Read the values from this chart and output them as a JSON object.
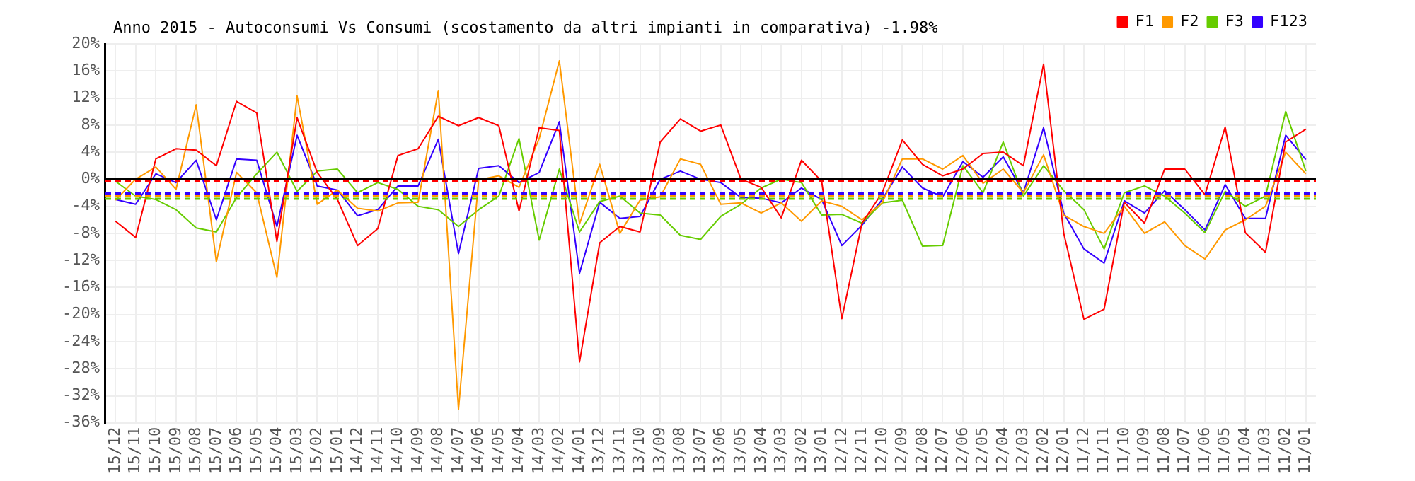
{
  "chart_data": {
    "type": "line",
    "title": "Anno 2015 - Autoconsumi Vs Consumi (scostamento da altri impianti in comparativa) -1.98%",
    "categories": [
      "15/12",
      "15/11",
      "15/10",
      "15/09",
      "15/08",
      "15/07",
      "15/06",
      "15/05",
      "15/04",
      "15/03",
      "15/02",
      "15/01",
      "14/12",
      "14/11",
      "14/10",
      "14/09",
      "14/08",
      "14/07",
      "14/06",
      "14/05",
      "14/04",
      "14/03",
      "14/02",
      "14/01",
      "13/12",
      "13/11",
      "13/10",
      "13/09",
      "13/08",
      "13/07",
      "13/06",
      "13/05",
      "13/04",
      "13/03",
      "13/02",
      "13/01",
      "12/12",
      "12/11",
      "12/10",
      "12/09",
      "12/08",
      "12/07",
      "12/06",
      "12/05",
      "12/04",
      "12/03",
      "12/02",
      "12/01",
      "11/12",
      "11/11",
      "11/10",
      "11/09",
      "11/08",
      "11/07",
      "11/06",
      "11/05",
      "11/04",
      "11/03",
      "11/02",
      "11/01"
    ],
    "series": [
      {
        "name": "F1",
        "color": "#ff0000",
        "values": [
          -6.2,
          -8.6,
          3.0,
          4.5,
          4.3,
          2.0,
          11.5,
          9.8,
          -9.2,
          9.1,
          1.0,
          -3.0,
          -9.8,
          -7.3,
          3.5,
          4.5,
          9.3,
          7.9,
          9.1,
          7.9,
          -4.7,
          7.6,
          7.2,
          -27,
          -9.4,
          -7,
          -7.8,
          5.5,
          8.9,
          7.1,
          8,
          0,
          -1.2,
          -5.7,
          2.8,
          -0.3,
          -20.6,
          -6.5,
          -2,
          5.8,
          2.2,
          0.5,
          1.5,
          3.8,
          4,
          2,
          17,
          -8,
          -20.7,
          -19.2,
          -3.4,
          -6.5,
          1.5,
          1.5,
          -2.3,
          7.7,
          -7.9,
          -10.8,
          5.5,
          7.4
        ]
      },
      {
        "name": "F2",
        "color": "#ff9900",
        "values": [
          -3.1,
          0,
          1.8,
          -1.5,
          11,
          -12.2,
          1,
          -2,
          -14.5,
          12.3,
          -3.7,
          -1.6,
          -4.3,
          -4.7,
          -3.5,
          -3.4,
          13.1,
          -34,
          -0.1,
          0.5,
          -1.2,
          6,
          17.5,
          -6.6,
          2.2,
          -8,
          -3.1,
          -2.6,
          3,
          2.2,
          -3.7,
          -3.5,
          -5,
          -3.5,
          -6.2,
          -3.2,
          -4,
          -6,
          -3.5,
          3,
          3,
          1.5,
          3.5,
          -0.6,
          1.5,
          -2,
          3.6,
          -5.3,
          -7,
          -8,
          -4,
          -8,
          -6.3,
          -9.8,
          -11.8,
          -7.5,
          -6,
          -4,
          4,
          0.8
        ]
      },
      {
        "name": "F3",
        "color": "#66cc00",
        "values": [
          -0.3,
          -2.5,
          -3,
          -4.5,
          -7.2,
          -7.8,
          -2.7,
          0.8,
          4,
          -1.8,
          1.2,
          1.5,
          -2,
          -0.5,
          -1.5,
          -4,
          -4.5,
          -7,
          -4.5,
          -2.5,
          6,
          -9,
          1.5,
          -7.8,
          -3.3,
          -2.5,
          -5,
          -5.3,
          -8.3,
          -8.9,
          -5.5,
          -3.7,
          -1.3,
          0,
          -0.5,
          -5.3,
          -5.2,
          -6.5,
          -3.5,
          -3.1,
          -9.9,
          -9.8,
          2,
          -2,
          5.5,
          -2.5,
          2,
          -1.7,
          -4.5,
          -10.3,
          -2,
          -1,
          -2.5,
          -5,
          -7.9,
          -1.8,
          -4,
          -2.5,
          10,
          1.2
        ]
      },
      {
        "name": "F123",
        "color": "#3300ff",
        "values": [
          -3,
          -3.7,
          0.8,
          -0.5,
          2.8,
          -6,
          3,
          2.8,
          -7,
          6.5,
          -1,
          -1.6,
          -5.4,
          -4.5,
          -1,
          -1,
          5.9,
          -11,
          1.6,
          2,
          -0.5,
          1,
          8.5,
          -13.9,
          -3.4,
          -5.8,
          -5.5,
          0,
          1.2,
          0,
          -0.5,
          -2.7,
          -2.8,
          -3.5,
          -1.3,
          -3,
          -9.8,
          -6.8,
          -3,
          1.8,
          -1.3,
          -2.6,
          2.6,
          0.3,
          3.3,
          -2,
          7.6,
          -5,
          -10.3,
          -12.4,
          -3.2,
          -5,
          -1.7,
          -4.5,
          -7.5,
          -0.8,
          -5.8,
          -5.8,
          6.5,
          2.9
        ]
      }
    ],
    "ylim": [
      -36,
      20
    ],
    "yticks": [
      {
        "value": -36,
        "label": "-36%"
      },
      {
        "value": -32,
        "label": "-32%"
      },
      {
        "value": -28,
        "label": "-28%"
      },
      {
        "value": -24,
        "label": "-24%"
      },
      {
        "value": -20,
        "label": "-20%"
      },
      {
        "value": -16,
        "label": "-16%"
      },
      {
        "value": -12,
        "label": "-12%"
      },
      {
        "value": -8,
        "label": "-8%"
      },
      {
        "value": -4,
        "label": "-4%"
      },
      {
        "value": 0,
        "label": "0%"
      },
      {
        "value": 4,
        "label": "4%"
      },
      {
        "value": 8,
        "label": "8%"
      },
      {
        "value": 12,
        "label": "12%"
      },
      {
        "value": 16,
        "label": "16%"
      },
      {
        "value": 20,
        "label": "20%"
      }
    ],
    "ref_lines": [
      {
        "axis": "y",
        "value": 0,
        "color": "#000000",
        "line_style": "solid"
      },
      {
        "axis": "y",
        "value": -0.3,
        "color": "#ff0000",
        "line_style": "dashed"
      },
      {
        "axis": "y",
        "value": -2.1,
        "color": "#3300ff",
        "line_style": "dashed"
      },
      {
        "axis": "y",
        "value": -2.5,
        "color": "#ff9900",
        "line_style": "dashed"
      },
      {
        "axis": "y",
        "value": -2.9,
        "color": "#66cc00",
        "line_style": "dashed"
      }
    ],
    "grid": true,
    "legend": "top right",
    "marker": "none",
    "line_style": "solid"
  }
}
